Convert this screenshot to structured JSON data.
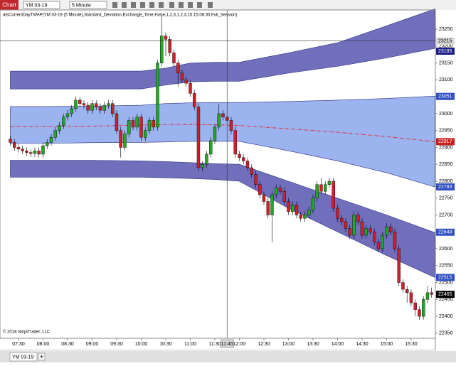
{
  "toolbar": {
    "tab": "Chart",
    "instrument": "YM 03-19",
    "interval": "5 Minute"
  },
  "tabs": {
    "active": "YM 03-19",
    "add": "+"
  },
  "chart_data": {
    "type": "candlestick",
    "title": "atsCurrentDayTWAP(YM 03-19 (5 Minute),Standard_Deviation,Exchange_Time,False,1,2,3,1,2,3,15:15,08:30,Full_Session)",
    "copyright": "© 2018 NinjaTrader, LLC",
    "up_color": "#22a822",
    "down_color": "#d0202a",
    "x": [
      440,
      445,
      450,
      455,
      460,
      465,
      470,
      475,
      480,
      485,
      490,
      495,
      500,
      505,
      510,
      515,
      520,
      525,
      530,
      535,
      540,
      545,
      550,
      555,
      560,
      565,
      570,
      575,
      580,
      585,
      590,
      595,
      600,
      605,
      610,
      615,
      620,
      625,
      630,
      635,
      640,
      645,
      650,
      655,
      660,
      665,
      670,
      675,
      680,
      685,
      690,
      695,
      700,
      705,
      710,
      715,
      720,
      725,
      730,
      735,
      740,
      745,
      750,
      755,
      760,
      765,
      770,
      775,
      780,
      785,
      790,
      795,
      800,
      805,
      810,
      815,
      820,
      825,
      830,
      835,
      840,
      845,
      850,
      855,
      860,
      865,
      870,
      875,
      880,
      885,
      890,
      895,
      900,
      905,
      910,
      915,
      920,
      925,
      930,
      935,
      940,
      945,
      950,
      955
    ],
    "open": [
      22925,
      22915,
      22900,
      22895,
      22890,
      22885,
      22882,
      22890,
      22880,
      22905,
      22915,
      22930,
      22950,
      22965,
      22990,
      23000,
      23015,
      23040,
      23030,
      23025,
      23010,
      23030,
      23020,
      23010,
      23025,
      23030,
      23000,
      22950,
      22900,
      22940,
      22980,
      22960,
      22990,
      22930,
      22950,
      22980,
      22960,
      23150,
      23230,
      23220,
      23180,
      23150,
      23120,
      23100,
      23090,
      23060,
      23020,
      22840,
      22850,
      22880,
      22920,
      22960,
      23000,
      22990,
      22980,
      22950,
      22880,
      22870,
      22860,
      22840,
      22820,
      22790,
      22760,
      22740,
      22700,
      22760,
      22780,
      22770,
      22740,
      22710,
      22730,
      22700,
      22690,
      22700,
      22715,
      22750,
      22790,
      22770,
      22790,
      22800,
      22720,
      22690,
      22680,
      22660,
      22640,
      22700,
      22680,
      22640,
      22660,
      22650,
      22620,
      22600,
      22640,
      22665,
      22650,
      22600,
      22500,
      22480,
      22470,
      22440,
      22420,
      22400,
      22450,
      22470
    ],
    "high": [
      22935,
      22925,
      22910,
      22905,
      22900,
      22895,
      22900,
      22900,
      22915,
      22925,
      22940,
      22960,
      22975,
      23000,
      23010,
      23025,
      23050,
      23050,
      23040,
      23035,
      23040,
      23040,
      23030,
      23035,
      23040,
      23040,
      23010,
      22960,
      22950,
      22990,
      22990,
      23000,
      23000,
      22960,
      22990,
      22990,
      23160,
      23290,
      23240,
      23230,
      23190,
      23160,
      23130,
      23110,
      23100,
      23070,
      23030,
      22860,
      22890,
      22930,
      22970,
      23030,
      23010,
      23000,
      22990,
      22960,
      22890,
      22880,
      22870,
      22850,
      22830,
      22800,
      22770,
      22750,
      22770,
      22790,
      22790,
      22780,
      22750,
      22740,
      22740,
      22710,
      22710,
      22725,
      22760,
      22800,
      22810,
      22800,
      22810,
      22810,
      22730,
      22700,
      22690,
      22670,
      22710,
      22710,
      22690,
      22670,
      22670,
      22660,
      22630,
      22650,
      22675,
      22675,
      22660,
      22610,
      22510,
      22490,
      22480,
      22450,
      22430,
      22460,
      22490,
      22485
    ],
    "low": [
      22905,
      22890,
      22885,
      22880,
      22875,
      22872,
      22872,
      22870,
      22870,
      22895,
      22905,
      22920,
      22940,
      22955,
      22980,
      22990,
      23005,
      23020,
      23015,
      23000,
      23000,
      23010,
      23000,
      23000,
      23015,
      22990,
      22940,
      22870,
      22890,
      22930,
      22950,
      22950,
      22920,
      22920,
      22940,
      22950,
      22950,
      23140,
      23170,
      23170,
      23140,
      23080,
      23090,
      23080,
      23050,
      23010,
      22830,
      22830,
      22840,
      22870,
      22910,
      22950,
      22980,
      22970,
      22940,
      22870,
      22860,
      22850,
      22830,
      22810,
      22780,
      22750,
      22730,
      22690,
      22620,
      22750,
      22760,
      22730,
      22700,
      22700,
      22690,
      22680,
      22680,
      22690,
      22705,
      22740,
      22760,
      22760,
      22780,
      22710,
      22680,
      22670,
      22650,
      22630,
      22630,
      22670,
      22630,
      22630,
      22640,
      22610,
      22590,
      22590,
      22630,
      22640,
      22590,
      22490,
      22470,
      22440,
      22430,
      22400,
      22390,
      22390,
      22440,
      22455
    ],
    "close": [
      22915,
      22900,
      22895,
      22890,
      22885,
      22882,
      22890,
      22880,
      22905,
      22915,
      22930,
      22950,
      22965,
      22990,
      23000,
      23015,
      23040,
      23030,
      23025,
      23010,
      23030,
      23020,
      23010,
      23025,
      23030,
      23000,
      22950,
      22900,
      22940,
      22980,
      22960,
      22990,
      22930,
      22950,
      22980,
      22960,
      23150,
      23230,
      23220,
      23180,
      23150,
      23120,
      23100,
      23090,
      23060,
      23020,
      22840,
      22850,
      22880,
      22920,
      22960,
      23000,
      22990,
      22980,
      22950,
      22880,
      22870,
      22860,
      22840,
      22820,
      22790,
      22760,
      22740,
      22700,
      22760,
      22780,
      22770,
      22740,
      22710,
      22730,
      22700,
      22690,
      22700,
      22715,
      22750,
      22790,
      22770,
      22790,
      22800,
      22720,
      22690,
      22680,
      22660,
      22640,
      22700,
      22680,
      22640,
      22660,
      22650,
      22620,
      22600,
      22640,
      22665,
      22650,
      22600,
      22500,
      22480,
      22470,
      22440,
      22420,
      22400,
      22450,
      22470,
      22465
    ],
    "bands": {
      "x": [
        440,
        480,
        540,
        600,
        630,
        660,
        690,
        720,
        780,
        840,
        900,
        959
      ],
      "upper_outer": {
        "color": "#5656b0",
        "upper": [
          23126,
          23126,
          23126,
          23126,
          23135,
          23150,
          23152,
          23152,
          23180,
          23210,
          23260,
          23310
        ],
        "lower": [
          23073,
          23073,
          23073,
          23073,
          23085,
          23094,
          23096,
          23096,
          23120,
          23140,
          23165,
          23193
        ]
      },
      "inner": {
        "color": "#8aa6ec",
        "upper": [
          23021,
          23021,
          23022,
          23025,
          23030,
          23032,
          23033,
          23033,
          23036,
          23040,
          23045,
          23052
        ],
        "lower": [
          22912,
          22912,
          22914,
          22915,
          22916,
          22918,
          22918,
          22918,
          22890,
          22860,
          22825,
          22783
        ]
      },
      "lower_outer": {
        "color": "#5656b0",
        "upper": [
          22862,
          22862,
          22862,
          22860,
          22858,
          22855,
          22852,
          22850,
          22800,
          22750,
          22700,
          22648
        ],
        "lower": [
          22812,
          22812,
          22812,
          22812,
          22810,
          22808,
          22805,
          22800,
          22720,
          22650,
          22580,
          22515
        ]
      },
      "vwap": {
        "color": "#e02020",
        "values": [
          22962,
          22962,
          22963,
          22966,
          22968,
          22968,
          22967,
          22965,
          22955,
          22945,
          22932,
          22917
        ]
      }
    },
    "price_markers": [
      {
        "value": 23185,
        "color": "#1c1c8a"
      },
      {
        "value": 23051,
        "color": "#2f4fc0"
      },
      {
        "value": 22917,
        "color": "#c81e1e"
      },
      {
        "value": 22783,
        "color": "#2f4fc0"
      },
      {
        "value": 22649,
        "color": "#2f4fc0"
      },
      {
        "value": 22515,
        "color": "#2f4fc0"
      },
      {
        "value": 22465,
        "color": "#000000"
      }
    ],
    "crosshair": {
      "x": {
        "value": 705,
        "label": "11:45"
      },
      "y": 23215
    },
    "xlim": [
      427.4,
      959.6
    ],
    "ylim": [
      22335,
      23307
    ],
    "xticks": [
      {
        "value": 450,
        "label": "07:30"
      },
      {
        "value": 480,
        "label": "08:00"
      },
      {
        "value": 510,
        "label": "08:30"
      },
      {
        "value": 540,
        "label": "09:00"
      },
      {
        "value": 570,
        "label": "09:30"
      },
      {
        "value": 600,
        "label": "10:00"
      },
      {
        "value": 630,
        "label": "10:30"
      },
      {
        "value": 660,
        "label": "11:00"
      },
      {
        "value": 690,
        "label": "11:30"
      },
      {
        "value": 720,
        "label": "12:00"
      },
      {
        "value": 750,
        "label": "12:30"
      },
      {
        "value": 780,
        "label": "13:00"
      },
      {
        "value": 810,
        "label": "13:30"
      },
      {
        "value": 840,
        "label": "14:00"
      },
      {
        "value": 870,
        "label": "14:30"
      },
      {
        "value": 900,
        "label": "15:00"
      },
      {
        "value": 930,
        "label": "15:30"
      }
    ],
    "yticks": [
      23250,
      23200,
      23150,
      23100,
      23050,
      23000,
      22950,
      22900,
      22850,
      22800,
      22750,
      22700,
      22650,
      22600,
      22550,
      22500,
      22450,
      22400,
      22350
    ]
  }
}
